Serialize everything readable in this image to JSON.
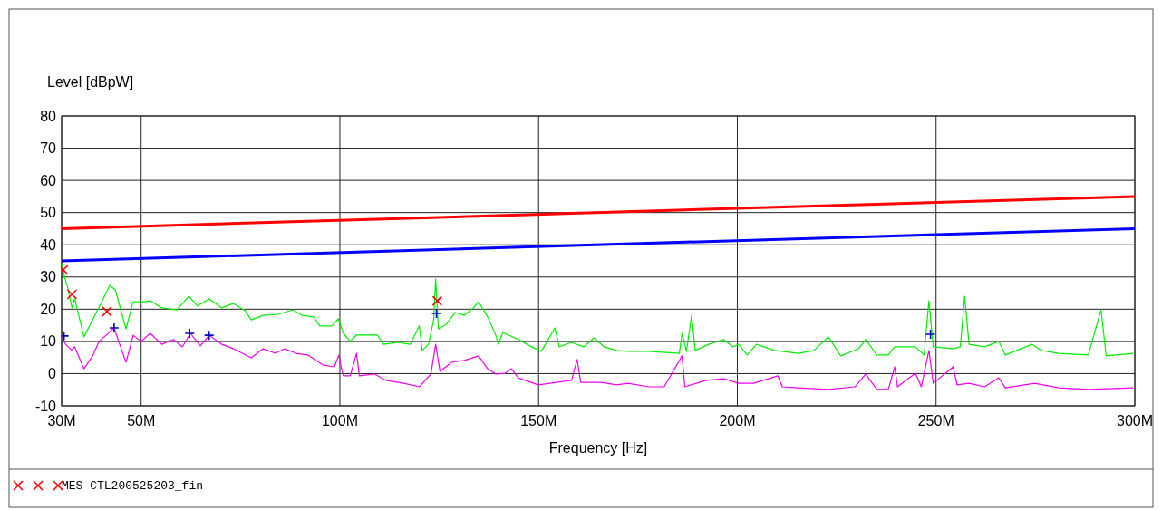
{
  "chart_data": {
    "type": "line",
    "ylabel": "Level [dBpW]",
    "xlabel": "Frequency [Hz]",
    "xlim": [
      30,
      300
    ],
    "xticks": [
      {
        "value": 30,
        "label": "30M"
      },
      {
        "value": 50,
        "label": "50M"
      },
      {
        "value": 100,
        "label": "100M"
      },
      {
        "value": 150,
        "label": "150M"
      },
      {
        "value": 200,
        "label": "200M"
      },
      {
        "value": 250,
        "label": "250M"
      },
      {
        "value": 300,
        "label": "300M"
      }
    ],
    "ylim": [
      -10,
      80
    ],
    "yticks": [
      -10,
      0,
      10,
      20,
      30,
      40,
      50,
      60,
      70,
      80
    ],
    "grid": true,
    "legend": "bottom",
    "series": [
      {
        "color": "#ff0000",
        "x": [
          30,
          300
        ],
        "values": [
          45,
          55
        ]
      },
      {
        "color": "#0000ff",
        "x": [
          30,
          300
        ],
        "values": [
          35,
          45
        ]
      },
      {
        "color": "#00ee00",
        "x": [
          30,
          30.8,
          31.5,
          32.6,
          33.3,
          35.6,
          37.8,
          40.1,
          42.1,
          43.5,
          46.2,
          48,
          50.7,
          52.3,
          55.2,
          59,
          62,
          64.2,
          67.1,
          70.3,
          73.2,
          76.2,
          77.7,
          80.7,
          84.5,
          88.2,
          90.5,
          93.4,
          95,
          98,
          99.6,
          100.9,
          102.6,
          104.2,
          109.4,
          111,
          114.6,
          117.7,
          120,
          120.7,
          122.3,
          123.6,
          124.1,
          124.8,
          126.8,
          129,
          131.3,
          133.6,
          134.9,
          137.2,
          139.2,
          139.9,
          141,
          144.9,
          147.8,
          150.7,
          154.1,
          155.2,
          158.3,
          161.3,
          164,
          166.5,
          169.6,
          172.5,
          177.7,
          185.4,
          186.1,
          187.2,
          188.5,
          189.4,
          192.8,
          196.6,
          198.9,
          200.3,
          202.5,
          204.8,
          209.3,
          215.4,
          219.3,
          222.9,
          226,
          230.5,
          232.3,
          235.1,
          238,
          239.6,
          244.8,
          247,
          248.2,
          249.3,
          254.3,
          256.1,
          257.2,
          258.3,
          262.2,
          265.8,
          267.4,
          274.1,
          276.4,
          280.9,
          288.3,
          291.5,
          292.8,
          299.6
        ],
        "values": [
          34.4,
          29.7,
          26.9,
          20.4,
          23.2,
          11.4,
          16.7,
          22.3,
          27.4,
          26,
          13.9,
          22.3,
          22.3,
          22.6,
          20.4,
          19.8,
          24,
          21,
          23.2,
          20.4,
          21.8,
          19.5,
          16.7,
          18.1,
          18.4,
          19.8,
          18.1,
          17.6,
          14.8,
          14.8,
          17,
          12.5,
          10,
          12,
          12,
          9.1,
          9.7,
          9.1,
          14.8,
          7.2,
          9.1,
          16.7,
          29.4,
          13.9,
          15.3,
          19,
          18.1,
          20.4,
          22.3,
          17.6,
          12,
          9.1,
          12.8,
          10.6,
          8.6,
          6.9,
          14.2,
          8.3,
          9.7,
          8.3,
          11.1,
          8.3,
          7.2,
          6.9,
          6.9,
          6.3,
          12.5,
          6.9,
          18.1,
          7.2,
          9.1,
          10.6,
          8.3,
          9.1,
          5.8,
          9.1,
          7.2,
          6.3,
          7.2,
          11.4,
          5.5,
          7.7,
          10.6,
          5.8,
          5.8,
          8.3,
          8.3,
          5.8,
          22.6,
          8.3,
          7.7,
          8.3,
          24,
          9.1,
          8.3,
          10,
          5.8,
          9.1,
          7.2,
          6.3,
          5.8,
          19.8,
          5.5,
          6.3
        ]
      },
      {
        "color": "#ee00ee",
        "x": [
          30,
          31,
          32.6,
          33.3,
          35.6,
          37.8,
          39.4,
          41.2,
          43.2,
          44.6,
          46.2,
          48,
          50,
          52.3,
          55.2,
          58.1,
          60.4,
          62.4,
          64.9,
          67.1,
          70.3,
          73.2,
          77.7,
          80.7,
          83.8,
          86.1,
          89,
          91.9,
          95.7,
          98.6,
          99.8,
          100.3,
          100.9,
          102.6,
          104.2,
          104.9,
          108.7,
          111.6,
          116.1,
          120,
          122.9,
          124.1,
          125.2,
          128.1,
          131.3,
          134.9,
          137.2,
          139.2,
          141.6,
          143.2,
          144.9,
          149.9,
          154.5,
          158.3,
          159.7,
          160.6,
          165.8,
          169.6,
          172.5,
          177.7,
          181.6,
          186.1,
          186.8,
          192.1,
          196.6,
          200.3,
          204.1,
          210.2,
          211.3,
          215.4,
          222.9,
          229.6,
          232.3,
          235.1,
          238,
          239.6,
          240.3,
          244.8,
          246.3,
          248.2,
          249.3,
          254.3,
          255.3,
          258.3,
          262.2,
          265.8,
          267.4,
          274.8,
          280.9,
          288.3,
          299.6
        ],
        "values": [
          11.9,
          9.1,
          7.2,
          8.3,
          1.5,
          5.5,
          10,
          11.9,
          14.2,
          9.1,
          3.5,
          11.9,
          10,
          12.5,
          9.1,
          10.6,
          8.3,
          12.5,
          8.6,
          11.9,
          9.1,
          7.7,
          4.9,
          7.7,
          6.3,
          7.7,
          6.3,
          5.8,
          2.7,
          2.1,
          5.8,
          2.1,
          -0.7,
          -0.7,
          6.3,
          -0.7,
          -0.1,
          -2.1,
          -3,
          -4.1,
          -0.1,
          9.1,
          0.7,
          3.5,
          4.1,
          5.5,
          1.5,
          -0.1,
          0.1,
          1.5,
          -1.3,
          -3.5,
          -2.7,
          -2.1,
          4.4,
          -2.7,
          -2.7,
          -3.5,
          -3,
          -4.1,
          -4.1,
          5.5,
          -4.1,
          -2.1,
          -1.6,
          -3,
          -3,
          -0.7,
          -4.1,
          -4.4,
          -4.9,
          -4.1,
          -0.1,
          -4.9,
          -4.9,
          2.1,
          -4.1,
          0.1,
          -4.1,
          7.2,
          -3,
          2.1,
          -3.5,
          -3,
          -4.1,
          -1.3,
          -4.4,
          -3,
          -4.4,
          -4.9,
          -4.4
        ]
      },
      {
        "type": "scatter",
        "name": "MES CTL200525203_fin",
        "color": "#ff0000",
        "marker": "cross",
        "x": [
          30.4,
          32.6,
          41.4,
          124.5
        ],
        "values": [
          32.2,
          24.6,
          19.3,
          22.6
        ]
      },
      {
        "type": "scatter",
        "color": "#0000cc",
        "marker": "plus",
        "x": [
          30.6,
          43.2,
          62.2,
          67.1,
          124.3,
          248.6
        ],
        "values": [
          11.7,
          14.2,
          12.5,
          11.9,
          18.7,
          12.2
        ]
      }
    ]
  }
}
